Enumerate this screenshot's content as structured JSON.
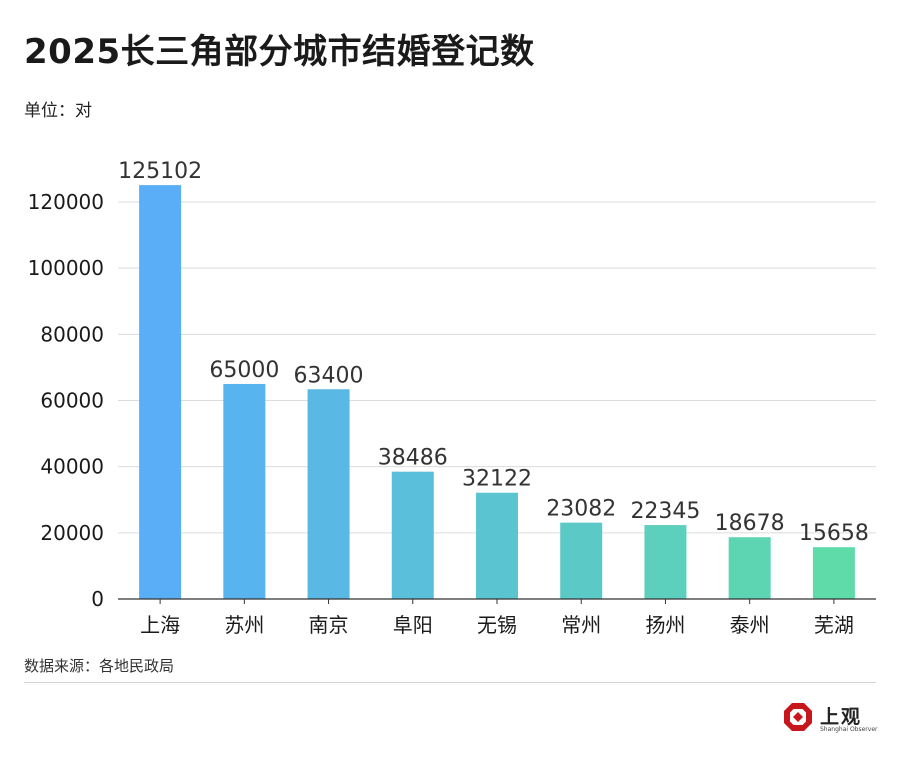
{
  "header": {
    "title": "2025长三角部分城市结婚登记数",
    "unit": "单位：对"
  },
  "footer": {
    "source": "数据来源：各地民政局",
    "logo_cn": "上观",
    "logo_en": "Shanghai Observer"
  },
  "chart_data": {
    "type": "bar",
    "title": "2025长三角部分城市结婚登记数",
    "ylabel": "单位：对",
    "xlabel": "",
    "categories": [
      "上海",
      "苏州",
      "南京",
      "阜阳",
      "无锡",
      "常州",
      "扬州",
      "泰州",
      "芜湖"
    ],
    "values": [
      125102,
      65000,
      63400,
      38486,
      32122,
      23082,
      22345,
      18678,
      15658
    ],
    "data_labels": [
      "125102",
      "65000",
      "63400",
      "38486",
      "32122",
      "23082",
      "22345",
      "18678",
      "15658"
    ],
    "ylim": [
      0,
      126000
    ],
    "yticks": [
      0,
      20000,
      40000,
      60000,
      80000,
      100000,
      120000
    ],
    "ytick_labels": [
      "0",
      "20000",
      "40000",
      "60000",
      "80000",
      "100000",
      "120000"
    ],
    "grid": true,
    "bar_colors": [
      "#5aaef8",
      "#58b4ef",
      "#59b9e4",
      "#59bfda",
      "#5ac4d0",
      "#5bc9c6",
      "#5ccfbd",
      "#5dd5b3",
      "#5edba9"
    ]
  }
}
